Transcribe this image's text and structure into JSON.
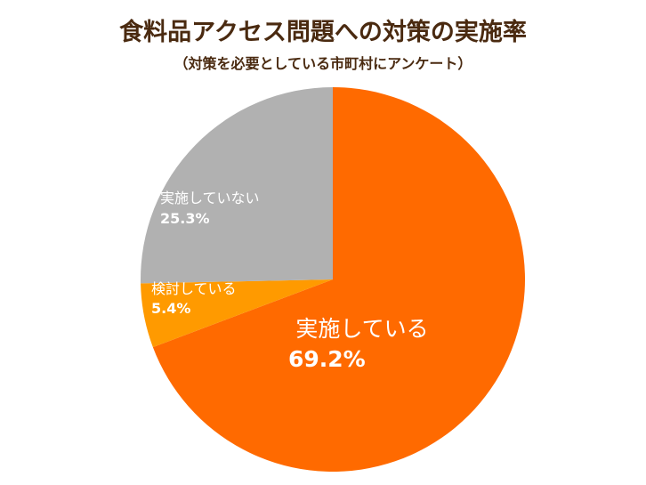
{
  "title": "食料品アクセス問題への対策の実施率",
  "subtitle": "（対策を必要としている市町村にアンケート）",
  "chart_data": {
    "type": "pie",
    "title": "食料品アクセス問題への対策の実施率",
    "subtitle": "（対策を必要としている市町村にアンケート）",
    "start": "12 o'clock",
    "direction": "clockwise",
    "legend": "none",
    "slices": [
      {
        "label": "実施している",
        "value": 69.2,
        "value_label": "69.2%",
        "color": "#ff6a00"
      },
      {
        "label": "検討している",
        "value": 5.4,
        "value_label": "5.4%",
        "color": "#ff9a00"
      },
      {
        "label": "実施していない",
        "value": 25.3,
        "value_label": "25.3%",
        "color": "#b1b1b1"
      }
    ]
  }
}
